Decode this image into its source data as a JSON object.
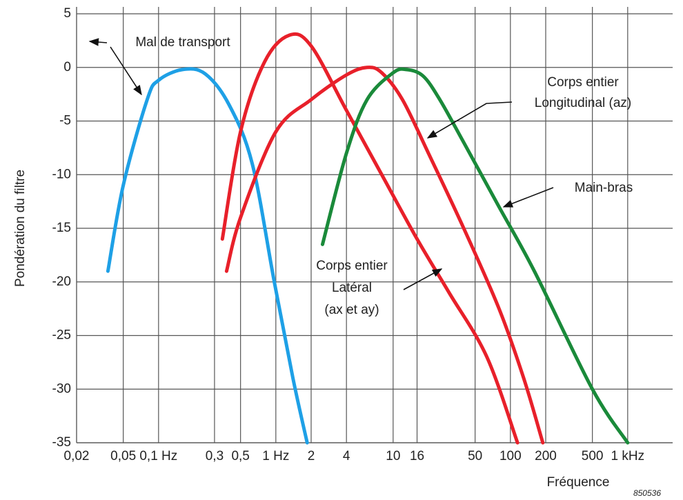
{
  "chart_data": {
    "type": "line",
    "y_label": "Pondération du filtre",
    "x_label": "Fréquence",
    "code": "850536",
    "log_x": true,
    "grid": true,
    "xlim": [
      0.02,
      2000
    ],
    "ylim": [
      -35,
      5
    ],
    "yticks": [
      5,
      0,
      -5,
      -10,
      -15,
      -20,
      -25,
      -30,
      -35
    ],
    "xticks": [
      {
        "value": 0.02,
        "label": "0,02"
      },
      {
        "value": 0.05,
        "label": "0,05"
      },
      {
        "value": 0.1,
        "label": "0,1 Hz"
      },
      {
        "value": 0.3,
        "label": "0,3"
      },
      {
        "value": 0.5,
        "label": "0,5"
      },
      {
        "value": 1,
        "label": "1 Hz"
      },
      {
        "value": 2,
        "label": "2"
      },
      {
        "value": 4,
        "label": "4"
      },
      {
        "value": 10,
        "label": "10"
      },
      {
        "value": 16,
        "label": "16"
      },
      {
        "value": 50,
        "label": "50"
      },
      {
        "value": 100,
        "label": "100"
      },
      {
        "value": 200,
        "label": "200"
      },
      {
        "value": 500,
        "label": "500"
      },
      {
        "value": 1000,
        "label": "1 kHz"
      }
    ],
    "series": [
      {
        "color": "#1ea0e6",
        "x": [
          0.037,
          0.05,
          0.08,
          0.1,
          0.16,
          0.25,
          0.4,
          0.63,
          0.97,
          1.4,
          1.85
        ],
        "values": [
          -19,
          -11,
          -3,
          -1.2,
          -0.2,
          -0.6,
          -3.5,
          -9,
          -20,
          -29,
          -35
        ]
      },
      {
        "color": "#e8202a",
        "x": [
          0.35,
          0.5,
          0.8,
          1.3,
          2,
          4,
          8,
          16,
          30,
          63,
          115
        ],
        "values": [
          -16,
          -6,
          0.5,
          3,
          2,
          -4,
          -10,
          -16,
          -21,
          -27,
          -35
        ]
      },
      {
        "color": "#e8202a",
        "x": [
          0.38,
          0.5,
          1,
          2,
          4,
          6,
          8,
          12,
          20,
          40,
          80,
          130,
          189
        ],
        "values": [
          -19,
          -14,
          -6,
          -3,
          -0.7,
          0,
          -0.5,
          -3,
          -8,
          -15,
          -22.5,
          -29,
          -35
        ]
      },
      {
        "color": "#1a8a3a",
        "x": [
          2.5,
          4,
          6,
          10,
          13,
          18,
          25,
          40,
          80,
          160,
          500,
          1000
        ],
        "values": [
          -16.5,
          -8,
          -3,
          -0.5,
          -0.2,
          -0.8,
          -3,
          -7,
          -13,
          -19,
          -30,
          -35
        ]
      }
    ],
    "annotations": {
      "transport": "Mal de transport",
      "longitudinal": [
        "Corps entier",
        "Longitudinal (az)"
      ],
      "main_bras": "Main-bras",
      "lateral": [
        "Corps entier",
        "Latéral",
        "(ax et ay)"
      ]
    }
  }
}
